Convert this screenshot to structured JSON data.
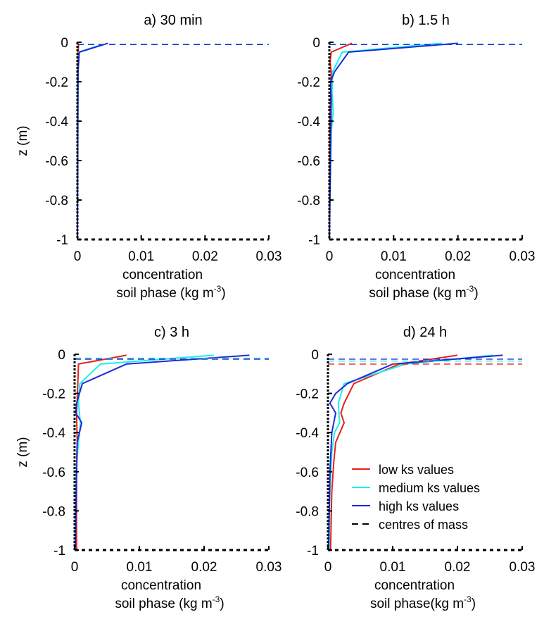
{
  "chart_data": [
    {
      "type": "line",
      "title": "a) 30 min",
      "xlabel_line1": "concentration",
      "xlabel_line2": "soil phase (kg m",
      "xlabel_sup": "-3",
      "xlabel_close": ")",
      "ylabel": "z (m)",
      "xlim": [
        0,
        0.03
      ],
      "ylim": [
        -1,
        0
      ],
      "xticks": [
        "0",
        "0.01",
        "0.02",
        "0.03"
      ],
      "yticks": [
        "0",
        "-0.2",
        "-0.4",
        "-0.6",
        "-0.8",
        "-1"
      ],
      "series": [
        {
          "color": "#e8201c",
          "x": [
            0.0002,
            0.0001,
            5e-05,
            0.0,
            0.0
          ],
          "y": [
            -0.01,
            -0.05,
            -0.1,
            -0.5,
            -1.0
          ]
        },
        {
          "color": "#19f0f0",
          "x": [
            0.004,
            0.0002,
            0.0,
            0.0
          ],
          "y": [
            -0.01,
            -0.05,
            -0.2,
            -1.0
          ]
        },
        {
          "color": "#1f2bd6",
          "x": [
            0.0048,
            0.0003,
            0.0001,
            0.0
          ],
          "y": [
            -0.005,
            -0.05,
            -0.15,
            -1.0
          ]
        }
      ],
      "centres_of_mass": [
        {
          "color": "#e8201c",
          "z": -0.012
        },
        {
          "color": "#19f0f0",
          "z": -0.01
        },
        {
          "color": "#1f2bd6",
          "z": -0.012
        }
      ]
    },
    {
      "type": "line",
      "title": "b) 1.5 h",
      "xlabel_line1": "concentration",
      "xlabel_line2": "soil phase (kg m",
      "xlabel_sup": "-3",
      "xlabel_close": ")",
      "ylabel": "",
      "xlim": [
        0,
        0.03
      ],
      "ylim": [
        -1,
        0
      ],
      "xticks": [
        "0",
        "0.01",
        "0.02",
        "0.03"
      ],
      "yticks": [
        "0",
        "-0.2",
        "-0.4",
        "-0.6",
        "-0.8",
        "-1"
      ],
      "series": [
        {
          "color": "#e8201c",
          "x": [
            0.0035,
            0.0003,
            0.0001,
            0.0003,
            0.0001,
            0.0
          ],
          "y": [
            -0.005,
            -0.05,
            -0.1,
            -0.15,
            -0.4,
            -1.0
          ]
        },
        {
          "color": "#19f0f0",
          "x": [
            0.0175,
            0.002,
            0.0005,
            0.0004,
            0.0006,
            0.0003,
            0.0
          ],
          "y": [
            -0.005,
            -0.05,
            -0.15,
            -0.25,
            -0.35,
            -0.45,
            -1.0
          ]
        },
        {
          "color": "#1f2bd6",
          "x": [
            0.02,
            0.003,
            0.0008,
            0.0002,
            0.0003,
            0.0
          ],
          "y": [
            -0.005,
            -0.05,
            -0.15,
            -0.2,
            -0.3,
            -1.0
          ]
        }
      ],
      "centres_of_mass": [
        {
          "color": "#e8201c",
          "z": -0.012
        },
        {
          "color": "#19f0f0",
          "z": -0.01
        },
        {
          "color": "#1f2bd6",
          "z": -0.012
        }
      ]
    },
    {
      "type": "line",
      "title": "c) 3 h",
      "xlabel_line1": "concentration",
      "xlabel_line2": "soil phase (kg m",
      "xlabel_sup": "-3",
      "xlabel_close": ")",
      "ylabel": "z (m)",
      "xlim": [
        0,
        0.03
      ],
      "ylim": [
        -1,
        0
      ],
      "xticks": [
        "0",
        "0.01",
        "0.02",
        "0.03"
      ],
      "yticks": [
        "0",
        "-0.2",
        "-0.4",
        "-0.6",
        "-0.8",
        "-1"
      ],
      "series": [
        {
          "color": "#e8201c",
          "x": [
            0.008,
            0.0006,
            0.0005,
            0.0003,
            0.0004,
            0.0003,
            0.0003,
            0.0003
          ],
          "y": [
            -0.005,
            -0.05,
            -0.15,
            -0.3,
            -0.45,
            -0.55,
            -0.8,
            -1.0
          ]
        },
        {
          "color": "#19f0f0",
          "x": [
            0.0215,
            0.004,
            0.0008,
            0.0006,
            0.0009,
            0.0006,
            0.0002,
            0.0001
          ],
          "y": [
            -0.005,
            -0.05,
            -0.15,
            -0.25,
            -0.35,
            -0.45,
            -0.6,
            -1.0
          ]
        },
        {
          "color": "#1f2bd6",
          "x": [
            0.027,
            0.008,
            0.0012,
            0.0003,
            0.0002,
            0.0011,
            0.0004,
            0.0001
          ],
          "y": [
            -0.005,
            -0.05,
            -0.15,
            -0.25,
            -0.3,
            -0.35,
            -0.45,
            -1.0
          ]
        }
      ],
      "centres_of_mass": [
        {
          "color": "#e8201c",
          "z": -0.025
        },
        {
          "color": "#19f0f0",
          "z": -0.02
        },
        {
          "color": "#1f2bd6",
          "z": -0.025
        }
      ]
    },
    {
      "type": "line",
      "title": "d) 24 h",
      "xlabel_line1": "concentration",
      "xlabel_line2": "soil phase(kg m",
      "xlabel_sup": "-3",
      "xlabel_close": ")",
      "ylabel": "",
      "xlim": [
        0,
        0.03
      ],
      "ylim": [
        -1,
        0
      ],
      "xticks": [
        "0",
        "0.01",
        "0.02",
        "0.03"
      ],
      "yticks": [
        "0",
        "-0.2",
        "-0.4",
        "-0.6",
        "-0.8",
        "-1"
      ],
      "series": [
        {
          "color": "#e8201c",
          "x": [
            0.02,
            0.011,
            0.004,
            0.0025,
            0.002,
            0.0025,
            0.0012,
            0.0009,
            0.0006,
            0.0004
          ],
          "y": [
            -0.005,
            -0.05,
            -0.15,
            -0.25,
            -0.3,
            -0.35,
            -0.45,
            -0.55,
            -0.7,
            -1.0
          ]
        },
        {
          "color": "#19f0f0",
          "x": [
            0.0255,
            0.012,
            0.0025,
            0.0016,
            0.0018,
            0.001,
            0.0006,
            0.0003,
            0.0002
          ],
          "y": [
            -0.005,
            -0.05,
            -0.15,
            -0.25,
            -0.35,
            -0.4,
            -0.5,
            -0.7,
            -1.0
          ]
        },
        {
          "color": "#1f2bd6",
          "x": [
            0.027,
            0.01,
            0.003,
            0.0012,
            0.0003,
            0.0012,
            0.0006,
            0.0003,
            0.0001
          ],
          "y": [
            -0.005,
            -0.05,
            -0.15,
            -0.2,
            -0.25,
            -0.3,
            -0.4,
            -0.6,
            -1.0
          ]
        }
      ],
      "centres_of_mass": [
        {
          "color": "#1f2bd6",
          "z": -0.025
        },
        {
          "color": "#19f0f0",
          "z": -0.035
        },
        {
          "color": "#e8201c",
          "z": -0.05
        }
      ],
      "legend": {
        "placement": "bottom-right",
        "entries": [
          {
            "label": "low ks values",
            "color": "#e8201c",
            "style": "solid"
          },
          {
            "label": "medium ks values",
            "color": "#19f0f0",
            "style": "solid"
          },
          {
            "label": "high ks values",
            "color": "#1f2bd6",
            "style": "solid"
          },
          {
            "label": "centres of mass",
            "color": "#000000",
            "style": "dashed"
          }
        ]
      }
    }
  ]
}
